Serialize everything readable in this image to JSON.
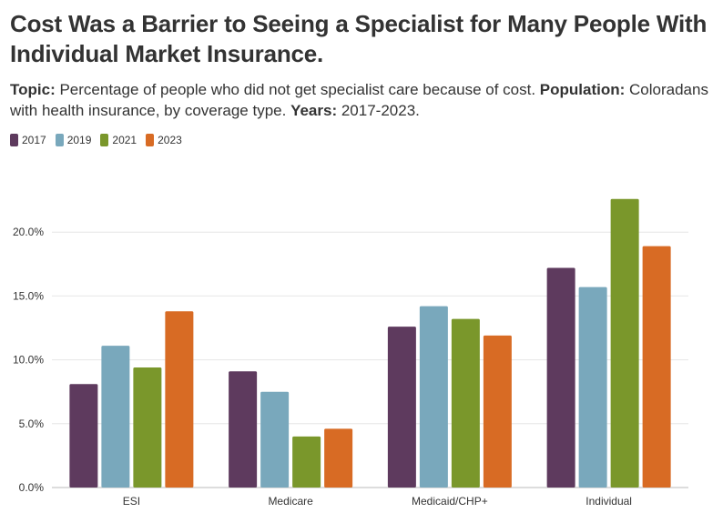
{
  "title": "Cost Was a Barrier to Seeing a Specialist for Many People With Individual Market Insurance.",
  "subtitle": {
    "topic_label": "Topic:",
    "topic_text": " Percentage of people who did not get specialist care because of cost. ",
    "population_label": "Population:",
    "population_text": " Coloradans with health insurance, by coverage type. ",
    "years_label": "Years:",
    "years_text": " 2017-2023."
  },
  "chart_data": {
    "type": "bar",
    "categories": [
      "ESI",
      "Medicare",
      "Medicaid/CHP+",
      "Individual"
    ],
    "series": [
      {
        "name": "2017",
        "color": "#5e3a5e",
        "values": [
          8.1,
          9.1,
          12.6,
          17.2
        ]
      },
      {
        "name": "2019",
        "color": "#79a8bc",
        "values": [
          11.1,
          7.5,
          14.2,
          15.7
        ]
      },
      {
        "name": "2021",
        "color": "#7a972b",
        "values": [
          9.4,
          4.0,
          13.2,
          22.6
        ]
      },
      {
        "name": "2023",
        "color": "#d86b24",
        "values": [
          13.8,
          4.6,
          11.9,
          18.9
        ]
      }
    ],
    "ylim": [
      0,
      25
    ],
    "yticks": [
      0,
      5,
      10,
      15,
      20
    ],
    "ytick_labels": [
      "0.0%",
      "5.0%",
      "10.0%",
      "15.0%",
      "20.0%"
    ],
    "grid": true,
    "legend": "top-left",
    "xlabel": "",
    "ylabel": ""
  }
}
